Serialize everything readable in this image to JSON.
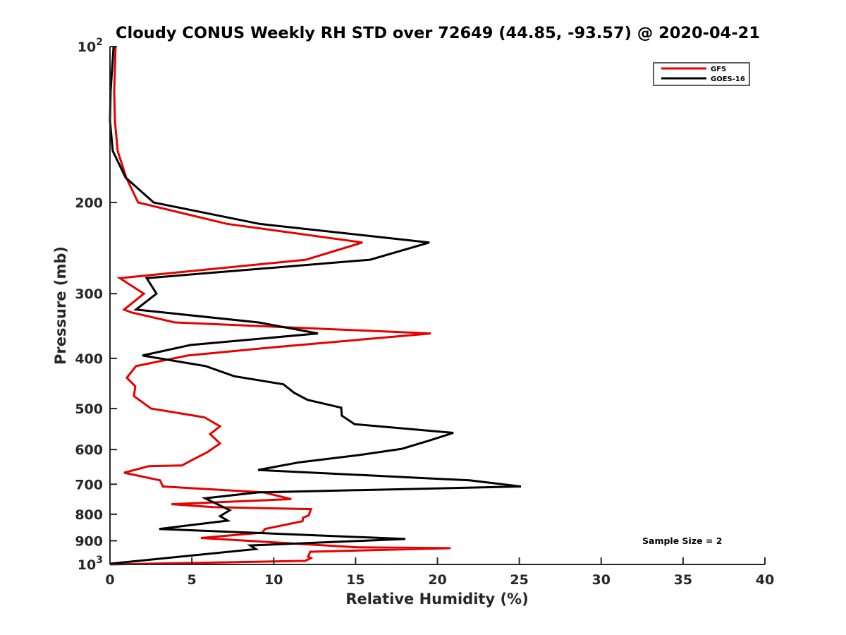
{
  "chart_data": {
    "type": "line",
    "title": "Cloudy CONUS Weekly RH STD over 72649 (44.85, -93.57) @ 2020-04-21",
    "xlabel": "Relative Humidity (%)",
    "ylabel": "Pressure (mb)",
    "xlim": [
      0,
      40
    ],
    "ylim": [
      100,
      1000
    ],
    "yscale": "log",
    "yreversed": true,
    "grid": false,
    "xticks": [
      0,
      5,
      10,
      15,
      20,
      25,
      30,
      35,
      40
    ],
    "xtick_labels": [
      "0",
      "5",
      "10",
      "15",
      "20",
      "25",
      "30",
      "35",
      "40"
    ],
    "yticks": [
      100,
      200,
      300,
      400,
      500,
      600,
      700,
      800,
      900,
      1000
    ],
    "ytick_labels": [
      {
        "base": "10",
        "exp": "2"
      },
      {
        "base": "200"
      },
      {
        "base": "300"
      },
      {
        "base": "400"
      },
      {
        "base": "500"
      },
      {
        "base": "600"
      },
      {
        "base": "700"
      },
      {
        "base": "800"
      },
      {
        "base": "900"
      },
      {
        "base": "10",
        "exp": "3"
      }
    ],
    "legend": {
      "position": "top-right",
      "entries": [
        {
          "name": "GFS",
          "color": "#e60000"
        },
        {
          "name": "GOES-16",
          "color": "#000000"
        }
      ]
    },
    "annotation": "Sample Size = 2",
    "series": [
      {
        "name": "GFS",
        "color": "#e60000",
        "points": [
          [
            0.34,
            100
          ],
          [
            0.26,
            122
          ],
          [
            0.3,
            139
          ],
          [
            0.47,
            159
          ],
          [
            0.99,
            179
          ],
          [
            1.72,
            200
          ],
          [
            7.15,
            220
          ],
          [
            15.42,
            239
          ],
          [
            11.97,
            258
          ],
          [
            0.6,
            280
          ],
          [
            2.07,
            300
          ],
          [
            0.86,
            322
          ],
          [
            1.29,
            326
          ],
          [
            3.96,
            341
          ],
          [
            19.59,
            358
          ],
          [
            9.9,
            381
          ],
          [
            4.74,
            395
          ],
          [
            1.59,
            414
          ],
          [
            1.03,
            436
          ],
          [
            1.55,
            453
          ],
          [
            1.51,
            461
          ],
          [
            1.46,
            473
          ],
          [
            2.5,
            500
          ],
          [
            5.77,
            520
          ],
          [
            6.72,
            541
          ],
          [
            6.12,
            560
          ],
          [
            6.72,
            584
          ],
          [
            5.94,
            607
          ],
          [
            5.12,
            626
          ],
          [
            4.39,
            644
          ],
          [
            2.37,
            646
          ],
          [
            0.86,
            665
          ],
          [
            3.06,
            688
          ],
          [
            3.23,
            707
          ],
          [
            9.4,
            726
          ],
          [
            11.07,
            748
          ],
          [
            3.75,
            765
          ],
          [
            6.29,
            775
          ],
          [
            12.27,
            782
          ],
          [
            12.14,
            804
          ],
          [
            11.8,
            812
          ],
          [
            11.76,
            825
          ],
          [
            9.47,
            854
          ],
          [
            9.3,
            868
          ],
          [
            5.55,
            889
          ],
          [
            15.12,
            927
          ],
          [
            20.8,
            930
          ],
          [
            12.23,
            945
          ],
          [
            12.1,
            966
          ],
          [
            12.27,
            972
          ],
          [
            11.93,
            984
          ],
          [
            0.0,
            1000
          ]
        ]
      },
      {
        "name": "GOES-16",
        "color": "#000000",
        "points": [
          [
            0.22,
            100
          ],
          [
            0.04,
            122
          ],
          [
            0.0,
            139
          ],
          [
            0.17,
            159
          ],
          [
            0.95,
            179
          ],
          [
            2.67,
            200
          ],
          [
            9.13,
            220
          ],
          [
            19.51,
            239
          ],
          [
            15.89,
            258
          ],
          [
            2.24,
            280
          ],
          [
            2.84,
            300
          ],
          [
            1.59,
            322
          ],
          [
            9.08,
            341
          ],
          [
            12.7,
            358
          ],
          [
            4.91,
            377
          ],
          [
            1.98,
            395
          ],
          [
            5.85,
            414
          ],
          [
            7.58,
            433
          ],
          [
            10.59,
            449
          ],
          [
            11.24,
            466
          ],
          [
            12.06,
            481
          ],
          [
            14.12,
            498
          ],
          [
            14.16,
            516
          ],
          [
            14.94,
            536
          ],
          [
            20.97,
            557
          ],
          [
            19.46,
            577
          ],
          [
            17.83,
            598
          ],
          [
            15.2,
            615
          ],
          [
            11.58,
            635
          ],
          [
            9.04,
            657
          ],
          [
            21.96,
            688
          ],
          [
            25.1,
            707
          ],
          [
            9.04,
            726
          ],
          [
            5.81,
            745
          ],
          [
            7.32,
            786
          ],
          [
            6.72,
            807
          ],
          [
            7.19,
            823
          ],
          [
            3.01,
            854
          ],
          [
            18.04,
            893
          ],
          [
            8.57,
            919
          ],
          [
            8.91,
            934
          ],
          [
            0.0,
            997
          ]
        ]
      }
    ]
  }
}
